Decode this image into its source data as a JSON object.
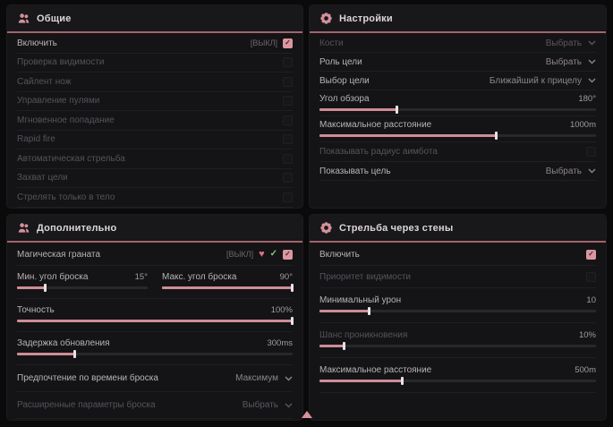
{
  "colors": {
    "page_bg": "#0a0a0b",
    "panel_bg": "#141416",
    "accent_pink": "#d9959f",
    "header_divider": "#a3636c",
    "slider_fill": "#cf8d96",
    "checkbox_checked": "#dc96a0",
    "success_green": "#84c979",
    "heart_red": "#d9707e"
  },
  "panels": {
    "general": {
      "title": "Общие",
      "icon": "people-icon",
      "items": [
        {
          "type": "checkbox",
          "label": "Включить",
          "keybind": "[ВЫКЛ]",
          "checked": true
        },
        {
          "type": "checkbox",
          "label": "Проверка видимости",
          "checked": false,
          "disabled": true
        },
        {
          "type": "checkbox",
          "label": "Сайлент нож",
          "checked": false,
          "disabled": true
        },
        {
          "type": "checkbox",
          "label": "Управление пулями",
          "checked": false,
          "disabled": true
        },
        {
          "type": "checkbox",
          "label": "Мгновенное попадание",
          "checked": false,
          "disabled": true
        },
        {
          "type": "checkbox",
          "label": "Rapid fire",
          "checked": false,
          "disabled": true
        },
        {
          "type": "checkbox",
          "label": "Автоматическая стрельба",
          "checked": false,
          "disabled": true
        },
        {
          "type": "checkbox",
          "label": "Захват цели",
          "checked": false,
          "disabled": true
        },
        {
          "type": "checkbox",
          "label": "Стрелять только в тело",
          "checked": false,
          "disabled": true
        }
      ]
    },
    "settings": {
      "title": "Настройки",
      "icon": "gear-flower-icon",
      "items": [
        {
          "type": "select",
          "label": "Кости",
          "value": "Выбрать",
          "disabled": true
        },
        {
          "type": "select",
          "label": "Роль цели",
          "value": "Выбрать"
        },
        {
          "type": "select",
          "label": "Выбор цели",
          "value": "Ближайший к прицелу"
        },
        {
          "type": "slider",
          "label": "Угол обзора",
          "value": "180°",
          "fill": 28
        },
        {
          "type": "slider",
          "label": "Максимальное расстояние",
          "value": "1000m",
          "fill": 64
        },
        {
          "type": "checkbox",
          "label": "Показывать радиус аимбота",
          "checked": false,
          "disabled": true
        },
        {
          "type": "select",
          "label": "Показывать цель",
          "value": "Выбрать"
        }
      ]
    },
    "additional": {
      "title": "Дополнительно",
      "icon": "people-icon",
      "grenade_row": {
        "label": "Магическая граната",
        "keybind": "[ВЫКЛ]",
        "icons": [
          "heart-icon",
          "check-icon"
        ],
        "checked": true
      },
      "items": [
        {
          "type": "slider",
          "label": "Мин. угол броска",
          "value": "15°",
          "fill": 22
        },
        {
          "type": "slider",
          "label": "Макс. угол броска",
          "value": "90°",
          "fill": 100
        },
        {
          "type": "slider",
          "label": "Точность",
          "value": "100%",
          "fill": 100
        },
        {
          "type": "slider",
          "label": "Задержка обновления",
          "value": "300ms",
          "fill": 21
        },
        {
          "type": "select",
          "label": "Предпочтение по времени броска",
          "value": "Максимум"
        },
        {
          "type": "select",
          "label": "Расширенные параметры броска",
          "value": "Выбрать"
        }
      ]
    },
    "walls": {
      "title": "Стрельба через стены",
      "icon": "gear-flower-icon",
      "items": [
        {
          "type": "checkbox",
          "label": "Включить",
          "checked": true
        },
        {
          "type": "checkbox",
          "label": "Приоритет видимости",
          "checked": false,
          "disabled": true
        },
        {
          "type": "slider",
          "label": "Минимальный урон",
          "value": "10",
          "fill": 18
        },
        {
          "type": "slider",
          "label": "Шанс проникновения",
          "value": "10%",
          "fill": 9,
          "disabled": true
        },
        {
          "type": "slider",
          "label": "Максимальное расстояние",
          "value": "500m",
          "fill": 30
        }
      ]
    }
  },
  "footer": {
    "icon": "cursor-triangle-icon"
  },
  "icon_glyphs": {
    "heart": "♥",
    "check": "✓"
  }
}
